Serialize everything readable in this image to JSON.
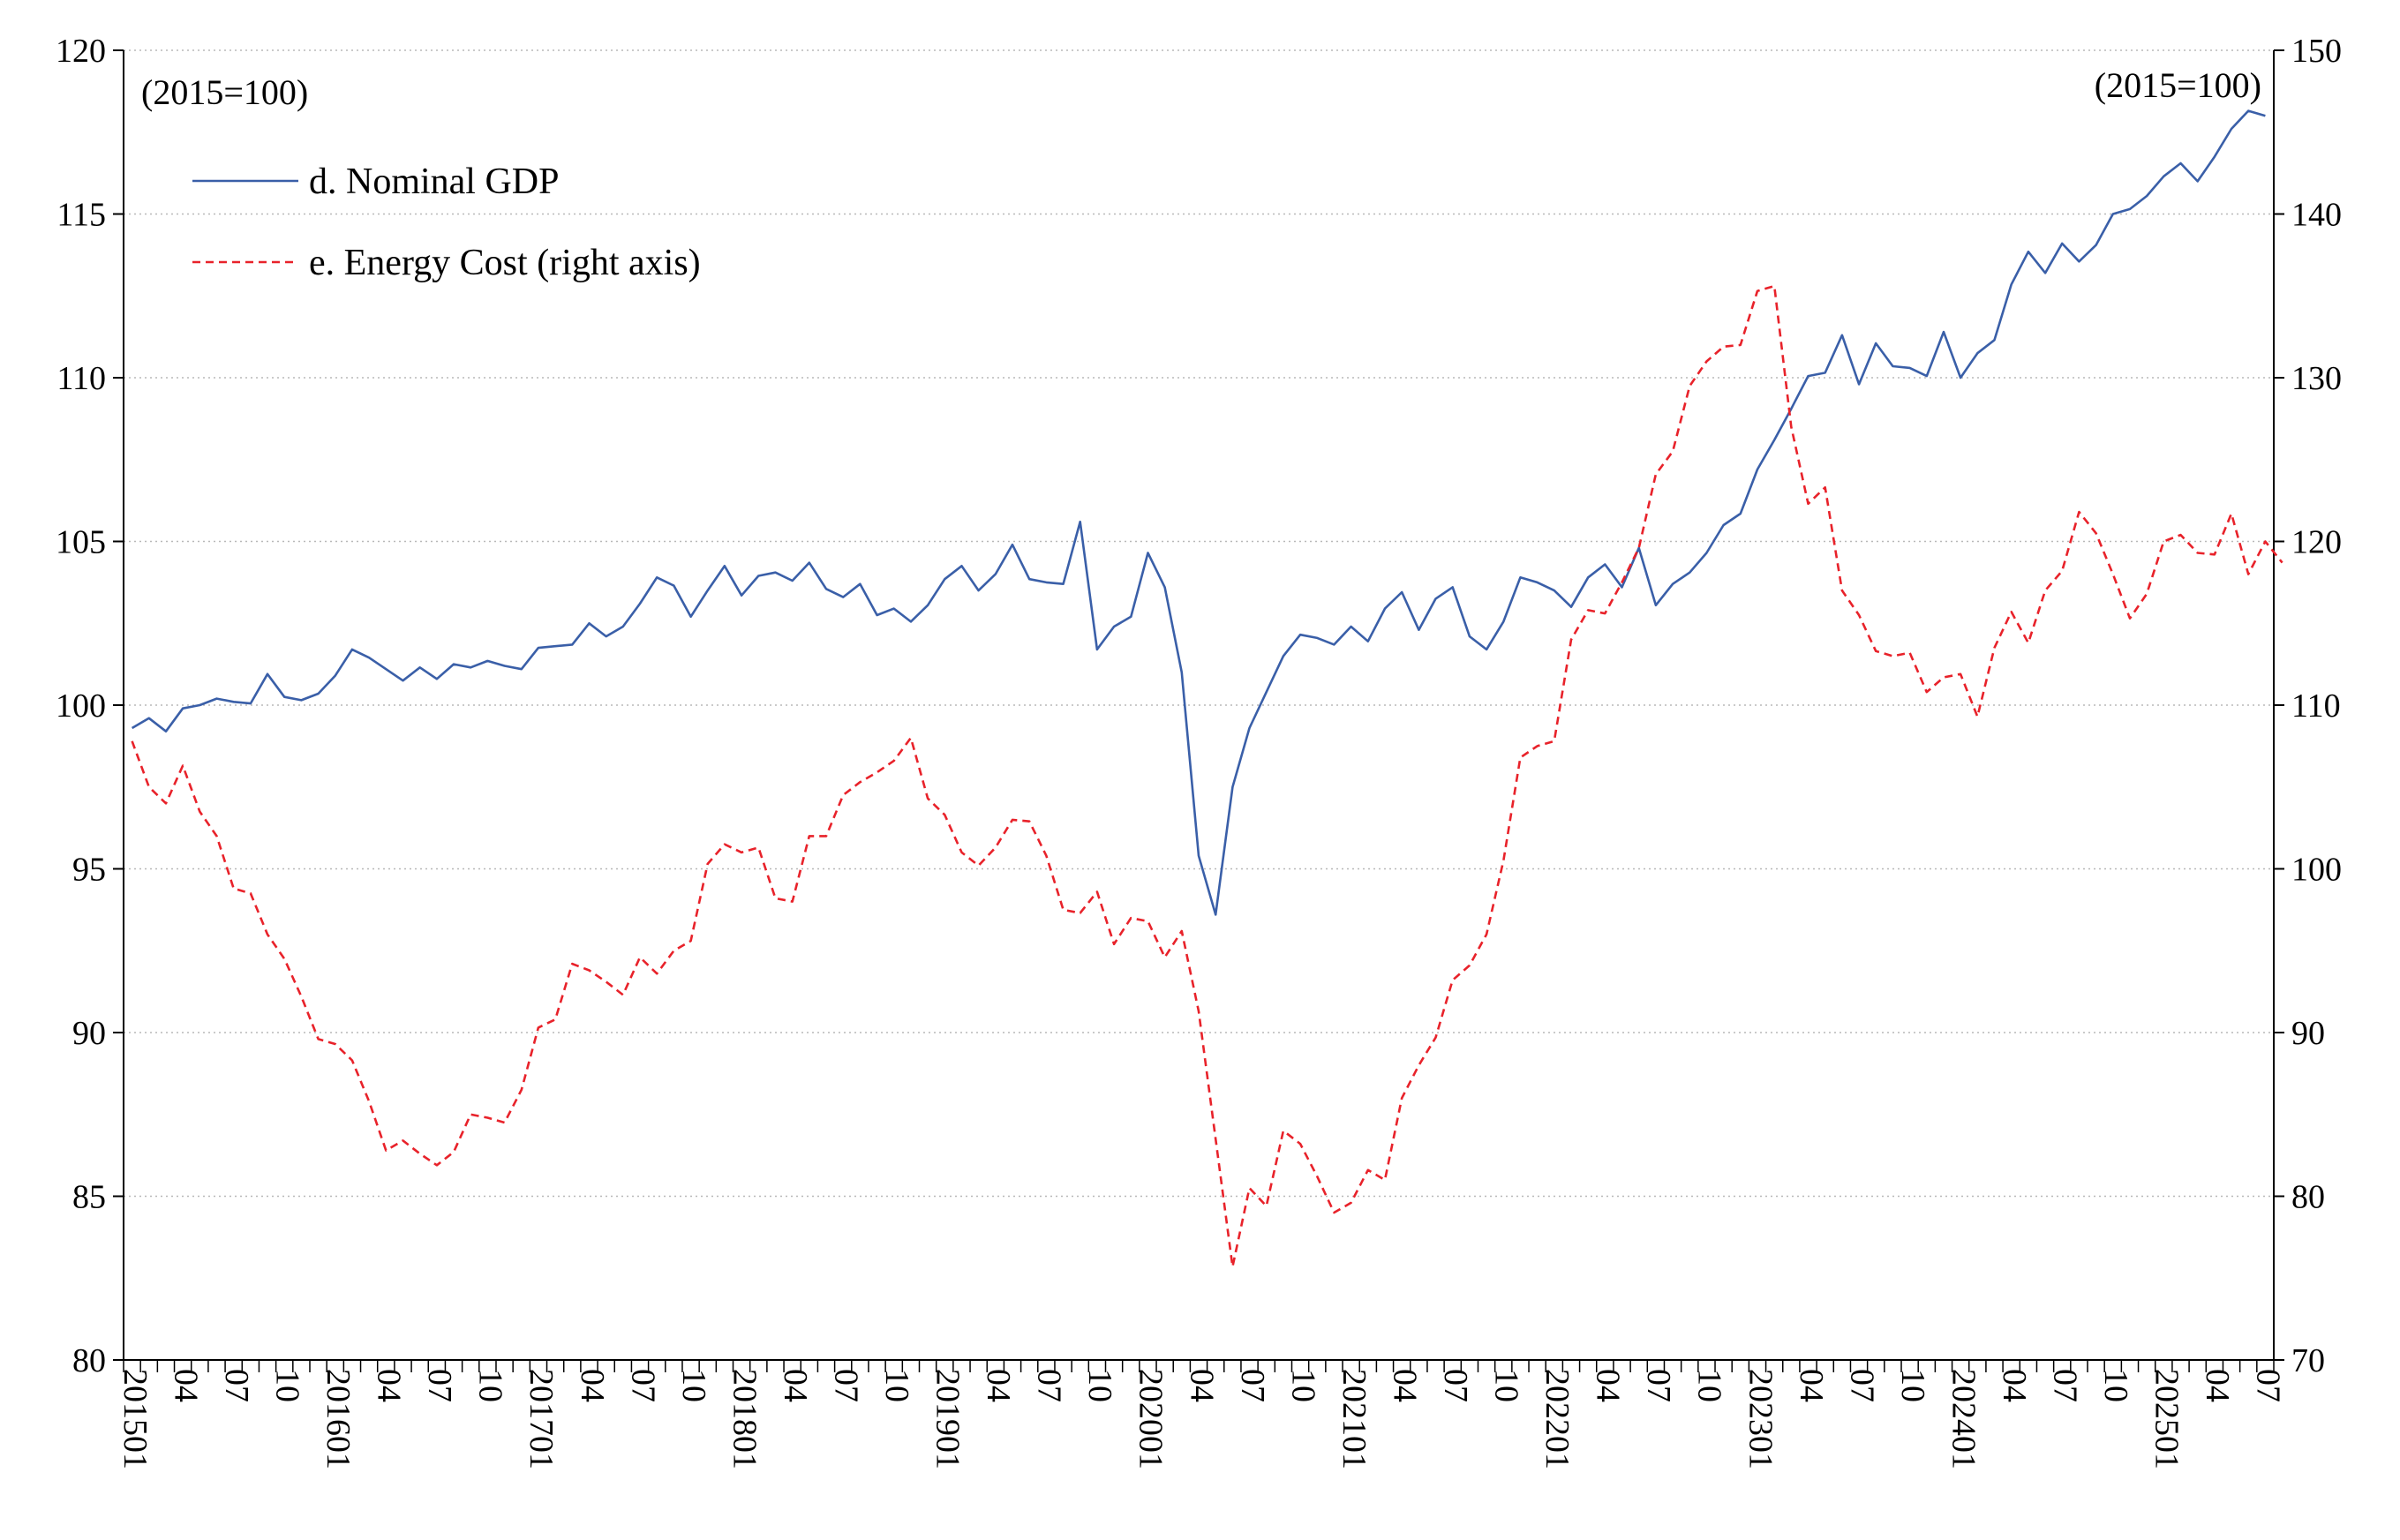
{
  "chart_data": {
    "type": "line",
    "title": "",
    "xlabel": "",
    "ylabel": "",
    "ylim": [
      80,
      120
    ],
    "y2lim": [
      70,
      150
    ],
    "y_ticks": [
      80,
      85,
      90,
      95,
      100,
      105,
      110,
      115,
      120
    ],
    "y2_ticks": [
      70,
      80,
      90,
      100,
      110,
      120,
      130,
      140,
      150
    ],
    "grid": "horizontal dotted",
    "legend_position": "top-left",
    "left_unit_label": "(2015=100)",
    "right_unit_label": "(2015=100)",
    "x_tick_labels": [
      "201501",
      "04",
      "07",
      "10",
      "201601",
      "04",
      "07",
      "10",
      "201701",
      "04",
      "07",
      "10",
      "201801",
      "04",
      "07",
      "10",
      "201901",
      "04",
      "07",
      "10",
      "202001",
      "04",
      "07",
      "10",
      "202101",
      "04",
      "07",
      "10",
      "202201",
      "04",
      "07",
      "10",
      "202301",
      "04",
      "07",
      "10",
      "202401",
      "04",
      "07",
      "10",
      "202501",
      "04",
      "07"
    ],
    "series": [
      {
        "name": "d. Nominal GDP",
        "axis": "left",
        "color": "#3a5fa8",
        "style": "solid",
        "values": [
          99.3,
          99.6,
          99.2,
          99.9,
          100.0,
          100.2,
          100.1,
          100.05,
          100.95,
          100.25,
          100.15,
          100.35,
          100.9,
          101.7,
          101.45,
          101.1,
          100.75,
          101.15,
          100.8,
          101.25,
          101.15,
          101.35,
          101.2,
          101.1,
          101.75,
          101.8,
          101.85,
          102.5,
          102.1,
          102.4,
          103.1,
          103.9,
          103.65,
          102.7,
          103.5,
          104.25,
          103.35,
          103.95,
          104.05,
          103.8,
          104.35,
          103.55,
          103.3,
          103.7,
          102.75,
          102.95,
          102.55,
          103.05,
          103.85,
          104.25,
          103.5,
          104.0,
          104.9,
          103.85,
          103.75,
          103.7,
          105.6,
          101.7,
          102.4,
          102.7,
          104.65,
          103.6,
          101.0,
          95.4,
          93.6,
          97.5,
          99.3,
          100.4,
          101.5,
          102.15,
          102.05,
          101.85,
          102.4,
          101.95,
          102.95,
          103.45,
          102.3,
          103.25,
          103.6,
          102.1,
          101.7,
          102.55,
          103.9,
          103.75,
          103.5,
          103.0,
          103.9,
          104.3,
          103.6,
          104.8,
          103.05,
          103.7,
          104.05,
          104.65,
          105.5,
          105.85,
          107.2,
          108.1,
          109.05,
          110.05,
          110.15,
          111.3,
          109.8,
          111.05,
          110.35,
          110.3,
          110.05,
          111.4,
          110.0,
          110.75,
          111.15,
          112.85,
          113.85,
          113.2,
          114.1,
          113.55,
          114.05,
          115.0,
          115.15,
          115.55,
          116.15,
          116.55,
          116.0,
          116.75,
          117.6,
          118.15,
          118.0
        ]
      },
      {
        "name": "e. Energy Cost (right axis)",
        "axis": "right",
        "color": "#e8222a",
        "style": "dashed",
        "values": [
          107.8,
          105.0,
          104.0,
          106.3,
          103.5,
          102.0,
          98.8,
          98.5,
          96.0,
          94.5,
          92.2,
          89.6,
          89.3,
          88.3,
          85.8,
          82.8,
          83.4,
          82.6,
          81.9,
          82.7,
          85.0,
          84.8,
          84.5,
          86.5,
          90.3,
          90.8,
          94.2,
          93.8,
          93.1,
          92.3,
          94.6,
          93.6,
          95.0,
          95.6,
          100.3,
          101.5,
          101.0,
          101.3,
          98.2,
          98.0,
          102.0,
          102.0,
          104.5,
          105.3,
          105.9,
          106.6,
          108.0,
          104.3,
          103.3,
          101.0,
          100.2,
          101.3,
          103.0,
          102.9,
          100.8,
          97.5,
          97.3,
          98.6,
          95.4,
          97.0,
          96.8,
          94.6,
          96.2,
          91.3,
          83.5,
          75.7,
          80.5,
          79.4,
          84.0,
          83.2,
          81.2,
          79.0,
          79.6,
          81.6,
          81.0,
          86.0,
          88.0,
          89.7,
          93.2,
          94.1,
          96.0,
          100.5,
          106.8,
          107.5,
          107.8,
          114.0,
          115.8,
          115.6,
          117.5,
          119.6,
          124.1,
          125.5,
          129.5,
          131.0,
          131.9,
          132.0,
          135.3,
          135.6,
          127.0,
          122.3,
          123.3,
          117.0,
          115.5,
          113.3,
          113.0,
          113.2,
          110.8,
          111.7,
          111.9,
          109.3,
          113.5,
          115.7,
          113.8,
          117.0,
          118.2,
          121.8,
          120.5,
          118.0,
          115.3,
          116.8,
          120.0,
          120.4,
          119.3,
          119.2,
          121.7,
          118.0,
          120.0,
          118.7
        ]
      }
    ]
  }
}
